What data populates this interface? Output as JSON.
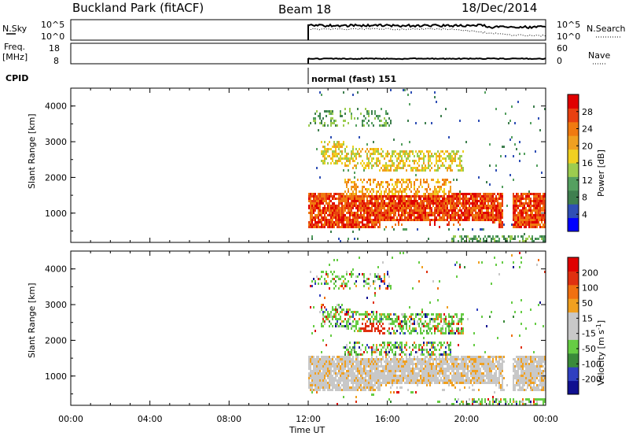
{
  "header": {
    "station": "Buckland Park (fitACF)",
    "beam": "Beam 18",
    "date": "18/Dec/2014"
  },
  "panels": {
    "nsky": {
      "label": "N.Sky",
      "y_top": "10^5",
      "y_bottom": "10^0",
      "right_label": "N.Search",
      "right_top": "10^5",
      "right_bottom": "10^0"
    },
    "freq": {
      "label_line1": "Freq.",
      "label_line2": "[MHz]",
      "y_top": "18",
      "y_bottom": "8",
      "right_label": "Nave",
      "right_top": "60",
      "right_bottom": "0"
    },
    "cpid": {
      "label": "CPID",
      "mode": "normal (fast) 151"
    }
  },
  "colors": {
    "power_scale": [
      "#0000ff",
      "#2f4fb5",
      "#3f7f4f",
      "#55a060",
      "#9ccc4f",
      "#f0d020",
      "#f0a020",
      "#f07a10",
      "#e84010",
      "#e00000"
    ],
    "velocity_scale": [
      "#101090",
      "#3040c0",
      "#3a8a3a",
      "#66cc44",
      "#c8c8c8",
      "#c8c8c8",
      "#f0a020",
      "#f07010",
      "#e03010",
      "#e00000"
    ]
  },
  "chart_data": [
    {
      "type": "heatmap",
      "title": "",
      "xlabel": "Time UT",
      "ylabel": "Slant Range [km]",
      "x_ticks": [
        "00:00",
        "04:00",
        "08:00",
        "12:00",
        "16:00",
        "20:00",
        "00:00"
      ],
      "x_range_hours": [
        0,
        24
      ],
      "y_ticks": [
        "1000",
        "2000",
        "3000",
        "4000"
      ],
      "y_range_km": [
        180,
        4500
      ],
      "colorbar_label": "Power [dB]",
      "colorbar_ticks": [
        "4",
        "8",
        "12",
        "16",
        "20",
        "24",
        "28"
      ],
      "data_start_hour": 12,
      "notes": "Backscatter present only from 12:00 to 24:00 UT"
    },
    {
      "type": "heatmap",
      "title": "",
      "xlabel": "Time UT",
      "ylabel": "Slant Range [km]",
      "x_ticks": [
        "00:00",
        "04:00",
        "08:00",
        "12:00",
        "16:00",
        "20:00",
        "00:00"
      ],
      "x_range_hours": [
        0,
        24
      ],
      "y_ticks": [
        "1000",
        "2000",
        "3000",
        "4000"
      ],
      "y_range_km": [
        180,
        4500
      ],
      "colorbar_label": "Velocity [m s",
      "colorbar_label_sup": "-1",
      "colorbar_label_end": "]",
      "colorbar_ticks": [
        "200",
        "100",
        "50",
        "15",
        "-15",
        "-50",
        "-100",
        "-200"
      ],
      "data_start_hour": 12
    }
  ]
}
